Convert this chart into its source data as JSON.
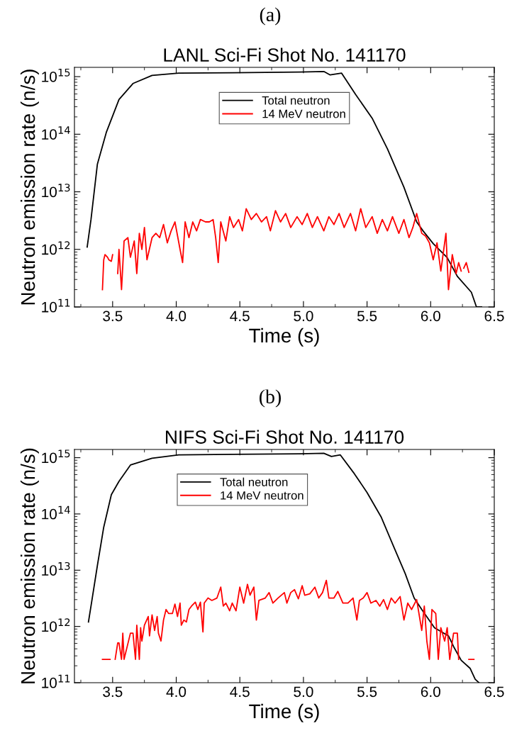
{
  "chart_data": [
    {
      "type": "line",
      "title": "LANL Sci-Fi Shot No. 141170",
      "annotations": [
        "(a)"
      ],
      "xlabel": "Time (s)",
      "ylabel": "Neutron emission rate (n/s)",
      "log": "y",
      "xlim": [
        3.2,
        6.5
      ],
      "xticks": [
        3.5,
        {
          "value": 4,
          "label": "4.0"
        },
        4.5,
        {
          "value": 5,
          "label": "5.0"
        },
        5.5,
        {
          "value": 6,
          "label": "6.0"
        },
        6.5
      ],
      "ylim": [
        100000000000.0,
        1450000000000000.0
      ],
      "yticks": [
        {
          "value": 100000000000.0,
          "label": "10$^{11}$"
        },
        {
          "value": 1000000000000.0,
          "label": "10$^{12}$"
        },
        {
          "value": 10000000000000.0,
          "label": "10$^{13}$"
        },
        {
          "value": 100000000000000.0,
          "label": "10$^{14}$"
        },
        {
          "value": 1000000000000000.0,
          "label": "10$^{15}$"
        }
      ],
      "legend": "top",
      "grid": false,
      "line_style": "solid",
      "marker": "none",
      "series": [
        {
          "name": "Total neutron",
          "color": "#000000",
          "x": [
            3.3,
            3.33,
            3.38,
            3.45,
            3.55,
            3.66,
            3.81,
            4.02,
            4.44,
            4.97,
            5.16,
            5.21,
            5.3,
            5.41,
            5.54,
            5.66,
            5.79,
            5.89,
            5.94,
            6.02,
            6.13,
            6.21,
            6.32,
            6.36,
            6.4
          ],
          "values": [
            1100000000000.0,
            3300000000000.0,
            30000000000000.0,
            107000000000000.0,
            400000000000000.0,
            760000000000000.0,
            1050000000000000.0,
            1150000000000000.0,
            1170000000000000.0,
            1200000000000000.0,
            1230000000000000.0,
            1070000000000000.0,
            1150000000000000.0,
            490000000000000.0,
            190000000000000.0,
            56000000000000.0,
            12000000000000.0,
            3000000000000.0,
            2100000000000.0,
            1260000000000.0,
            720000000000.0,
            340000000000.0,
            180000000000.0,
            100000000000.0,
            100000000000.0
          ]
        },
        {
          "name": "14 MeV neutron",
          "color": "#ff0000",
          "x": [
            3.42,
            3.43,
            3.44,
            3.46,
            3.47,
            3.49,
            3.5,
            3.52,
            3.54,
            3.55,
            3.57,
            3.59,
            3.62,
            3.64,
            3.67,
            3.69,
            3.71,
            3.73,
            3.75,
            3.77,
            3.81,
            3.84,
            3.87,
            3.9,
            3.93,
            3.96,
            3.99,
            4.03,
            4.05,
            4.07,
            4.1,
            4.13,
            4.16,
            4.19,
            4.23,
            4.26,
            4.29,
            4.31,
            4.33,
            4.35,
            4.39,
            4.42,
            4.45,
            4.49,
            4.52,
            4.55,
            4.59,
            4.63,
            4.67,
            4.71,
            4.74,
            4.78,
            4.82,
            4.86,
            4.9,
            4.95,
            4.99,
            5.03,
            5.07,
            5.11,
            5.16,
            5.2,
            5.24,
            5.28,
            5.32,
            5.37,
            5.41,
            5.45,
            5.49,
            5.54,
            5.58,
            5.62,
            5.66,
            5.7,
            5.75,
            5.79,
            5.83,
            5.86,
            5.89,
            5.93,
            5.96,
            5.99,
            6.02,
            6.05,
            6.08,
            6.12,
            6.14,
            6.17,
            6.2,
            6.22,
            6.24,
            6.25,
            6.26,
            6.28,
            6.3
          ],
          "values": [
            200000000000.0,
            660000000000.0,
            810000000000.0,
            730000000000.0,
            660000000000.0,
            620000000000.0,
            810000000000.0,
            null,
            380000000000.0,
            1000000000000.0,
            200000000000.0,
            1400000000000.0,
            1600000000000.0,
            730000000000.0,
            1400000000000.0,
            380000000000.0,
            1900000000000.0,
            1000000000000.0,
            2400000000000.0,
            660000000000.0,
            1600000000000.0,
            1900000000000.0,
            1600000000000.0,
            2700000000000.0,
            1300000000000.0,
            2100000000000.0,
            3000000000000.0,
            1000000000000.0,
            590000000000.0,
            3000000000000.0,
            1600000000000.0,
            3000000000000.0,
            2100000000000.0,
            3300000000000.0,
            3000000000000.0,
            3000000000000.0,
            3300000000000.0,
            1600000000000.0,
            590000000000.0,
            3000000000000.0,
            1400000000000.0,
            3700000000000.0,
            2400000000000.0,
            3300000000000.0,
            2100000000000.0,
            5100000000000.0,
            3300000000000.0,
            4200000000000.0,
            3000000000000.0,
            3700000000000.0,
            2100000000000.0,
            4700000000000.0,
            3000000000000.0,
            4200000000000.0,
            2400000000000.0,
            3700000000000.0,
            2700000000000.0,
            4200000000000.0,
            2400000000000.0,
            3700000000000.0,
            2100000000000.0,
            3700000000000.0,
            2700000000000.0,
            4200000000000.0,
            2400000000000.0,
            4200000000000.0,
            2100000000000.0,
            5100000000000.0,
            2400000000000.0,
            3700000000000.0,
            1900000000000.0,
            3300000000000.0,
            2100000000000.0,
            3700000000000.0,
            1900000000000.0,
            3300000000000.0,
            1600000000000.0,
            2400000000000.0,
            4200000000000.0,
            1900000000000.0,
            1700000000000.0,
            1300000000000.0,
            660000000000.0,
            1300000000000.0,
            420000000000.0,
            1900000000000.0,
            200000000000.0,
            810000000000.0,
            380000000000.0,
            590000000000.0,
            420000000000.0,
            null,
            470000000000.0,
            590000000000.0,
            400000000000.0
          ]
        }
      ]
    },
    {
      "type": "line",
      "title": "NIFS Sci-Fi Shot No. 141170",
      "annotations": [
        "(b)"
      ],
      "xlabel": "Time (s)",
      "ylabel": "Neutron emission rate (n/s)",
      "log": "y",
      "xlim": [
        3.2,
        6.5
      ],
      "xticks": [
        3.5,
        {
          "value": 4,
          "label": "4.0"
        },
        4.5,
        {
          "value": 5,
          "label": "5.0"
        },
        5.5,
        {
          "value": 6,
          "label": "6.0"
        },
        6.5
      ],
      "ylim": [
        100000000000.0,
        1400000000000000.0
      ],
      "yticks": [
        {
          "value": 100000000000.0,
          "label": "10$^{11}$"
        },
        {
          "value": 1000000000000.0,
          "label": "10$^{12}$"
        },
        {
          "value": 10000000000000.0,
          "label": "10$^{13}$"
        },
        {
          "value": 100000000000000.0,
          "label": "10$^{14}$"
        },
        {
          "value": 1000000000000000.0,
          "label": "10$^{15}$"
        }
      ],
      "legend": "top",
      "grid": false,
      "line_style": "solid",
      "marker": "none",
      "series": [
        {
          "name": "Total neutron",
          "color": "#000000",
          "x": [
            3.31,
            3.34,
            3.38,
            3.43,
            3.49,
            3.55,
            3.64,
            3.81,
            4.02,
            4.44,
            4.97,
            5.16,
            5.22,
            5.29,
            5.4,
            5.5,
            5.61,
            5.71,
            5.8,
            5.87,
            5.93,
            6.03,
            6.14,
            6.18,
            6.24,
            6.31,
            6.35,
            6.38
          ],
          "values": [
            1200000000000.0,
            3200000000000.0,
            12000000000000.0,
            58000000000000.0,
            220000000000000.0,
            380000000000000.0,
            740000000000000.0,
            980000000000000.0,
            1120000000000000.0,
            1150000000000000.0,
            1170000000000000.0,
            1200000000000000.0,
            1050000000000000.0,
            1120000000000000.0,
            520000000000000.0,
            240000000000000.0,
            89000000000000.0,
            26000000000000.0,
            8700000000000.0,
            3200000000000.0,
            2000000000000.0,
            950000000000.0,
            680000000000.0,
            440000000000.0,
            250000000000.0,
            180000000000.0,
            115000000000.0,
            100000000000.0
          ]
        },
        {
          "name": "14 MeV neutron",
          "color": "#ff0000",
          "x": [
            3.42,
            3.48,
            3.5,
            3.52,
            3.54,
            3.55,
            3.57,
            3.58,
            3.59,
            3.64,
            3.66,
            3.68,
            3.69,
            3.71,
            3.72,
            3.73,
            3.75,
            3.78,
            3.79,
            3.81,
            3.83,
            3.85,
            3.86,
            3.88,
            3.9,
            3.92,
            3.94,
            3.97,
            3.99,
            4.01,
            4.03,
            4.04,
            4.06,
            4.08,
            4.1,
            4.12,
            4.15,
            4.17,
            4.19,
            4.21,
            4.22,
            4.25,
            4.28,
            4.32,
            4.35,
            4.37,
            4.39,
            4.42,
            4.44,
            4.47,
            4.5,
            4.53,
            4.56,
            4.58,
            4.61,
            4.63,
            4.65,
            4.7,
            4.73,
            4.76,
            4.8,
            4.85,
            4.87,
            4.9,
            4.93,
            4.96,
            4.99,
            5.01,
            5.05,
            5.09,
            5.12,
            5.15,
            5.18,
            5.2,
            5.24,
            5.27,
            5.31,
            5.35,
            5.39,
            5.42,
            5.44,
            5.47,
            5.5,
            5.53,
            5.57,
            5.6,
            5.63,
            5.66,
            5.69,
            5.72,
            5.76,
            5.79,
            5.82,
            5.85,
            5.89,
            5.93,
            5.95,
            5.97,
            5.99,
            6.01,
            6.04,
            6.06,
            6.08,
            6.11,
            6.13,
            6.15,
            6.18,
            6.21,
            6.22,
            6.26,
            6.3,
            6.34
          ],
          "values": [
            260000000000.0,
            260000000000.0,
            null,
            260000000000.0,
            510000000000.0,
            510000000000.0,
            260000000000.0,
            760000000000.0,
            260000000000.0,
            760000000000.0,
            760000000000.0,
            260000000000.0,
            1050000000000.0,
            260000000000.0,
            950000000000.0,
            550000000000.0,
            1050000000000.0,
            1500000000000.0,
            680000000000.0,
            1600000000000.0,
            850000000000.0,
            1500000000000.0,
            760000000000.0,
            550000000000.0,
            1300000000000.0,
            2000000000000.0,
            1700000000000.0,
            1700000000000.0,
            2500000000000.0,
            1500000000000.0,
            2600000000000.0,
            1050000000000.0,
            1300000000000.0,
            1200000000000.0,
            2000000000000.0,
            2300000000000.0,
            2700000000000.0,
            2000000000000.0,
            2700000000000.0,
            800000000000.0,
            2600000000000.0,
            3200000000000.0,
            2900000000000.0,
            3200000000000.0,
            5000000000000.0,
            2300000000000.0,
            2600000000000.0,
            1900000000000.0,
            2600000000000.0,
            1900000000000.0,
            5000000000000.0,
            2600000000000.0,
            5600000000000.0,
            3600000000000.0,
            5000000000000.0,
            1300000000000.0,
            2900000000000.0,
            3200000000000.0,
            4000000000000.0,
            2600000000000.0,
            3200000000000.0,
            4000000000000.0,
            2600000000000.0,
            4000000000000.0,
            4500000000000.0,
            3100000000000.0,
            5300000000000.0,
            3600000000000.0,
            3800000000000.0,
            5000000000000.0,
            3200000000000.0,
            4000000000000.0,
            6600000000000.0,
            3200000000000.0,
            3200000000000.0,
            4200000000000.0,
            2600000000000.0,
            2600000000000.0,
            3200000000000.0,
            1300000000000.0,
            2900000000000.0,
            3200000000000.0,
            4000000000000.0,
            2600000000000.0,
            2900000000000.0,
            2300000000000.0,
            3000000000000.0,
            2000000000000.0,
            3200000000000.0,
            2600000000000.0,
            3400000000000.0,
            1300000000000.0,
            2600000000000.0,
            2000000000000.0,
            3000000000000.0,
            850000000000.0,
            2300000000000.0,
            550000000000.0,
            260000000000.0,
            2000000000000.0,
            1700000000000.0,
            260000000000.0,
            950000000000.0,
            550000000000.0,
            950000000000.0,
            260000000000.0,
            760000000000.0,
            760000000000.0,
            260000000000.0,
            null,
            260000000000.0,
            260000000000.0
          ]
        }
      ]
    }
  ]
}
